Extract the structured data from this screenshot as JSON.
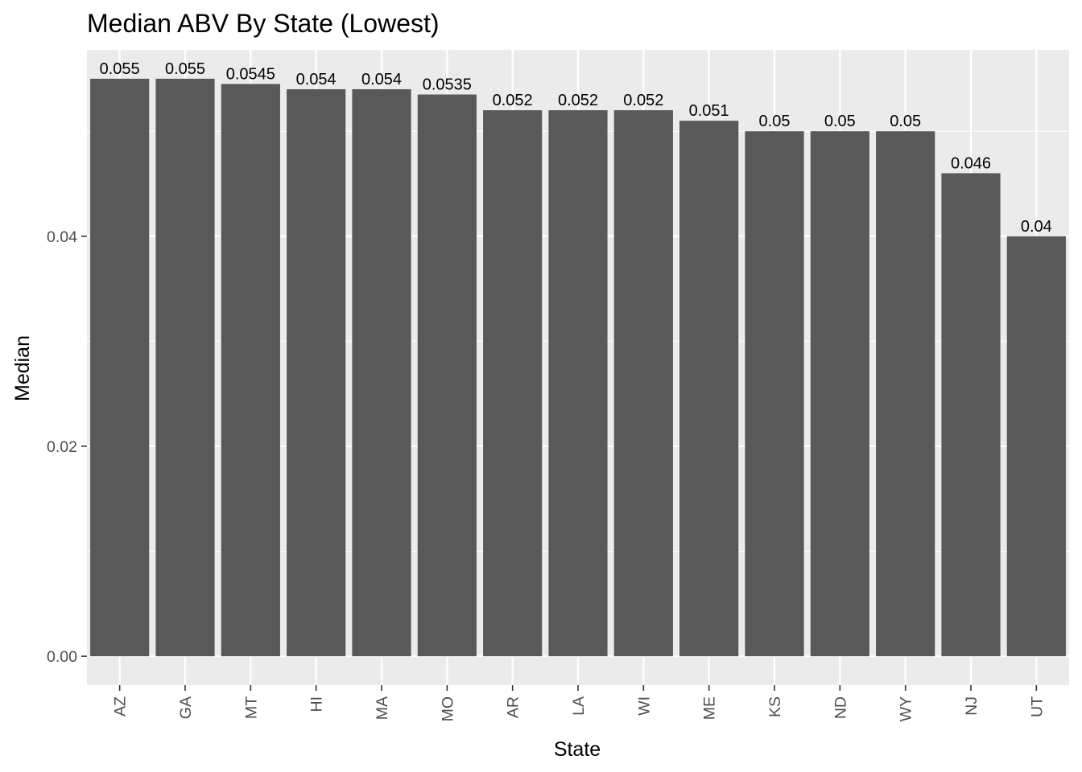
{
  "chart_data": {
    "type": "bar",
    "title": "Median ABV By State (Lowest)",
    "xlabel": "State",
    "ylabel": "Median",
    "categories": [
      "AZ",
      "GA",
      "MT",
      "HI",
      "MA",
      "MO",
      "AR",
      "LA",
      "WI",
      "ME",
      "KS",
      "ND",
      "WY",
      "NJ",
      "UT"
    ],
    "values": [
      0.055,
      0.055,
      0.0545,
      0.054,
      0.054,
      0.0535,
      0.052,
      0.052,
      0.052,
      0.051,
      0.05,
      0.05,
      0.05,
      0.046,
      0.04
    ],
    "data_labels": [
      "0.055",
      "0.055",
      "0.0545",
      "0.054",
      "0.054",
      "0.0535",
      "0.052",
      "0.052",
      "0.052",
      "0.051",
      "0.05",
      "0.05",
      "0.05",
      "0.046",
      "0.04"
    ],
    "ylim": [
      -0.00275,
      0.05775
    ],
    "yticks": [
      0.0,
      0.02,
      0.04
    ],
    "ytick_labels": [
      "0.00",
      "0.02",
      "0.04"
    ],
    "y_minor_ticks": [
      0.01,
      0.03,
      0.05
    ],
    "grid": true,
    "legend": "none",
    "colors": {
      "bar": "#595959",
      "panel": "#ebebeb",
      "grid": "#ffffff"
    }
  }
}
